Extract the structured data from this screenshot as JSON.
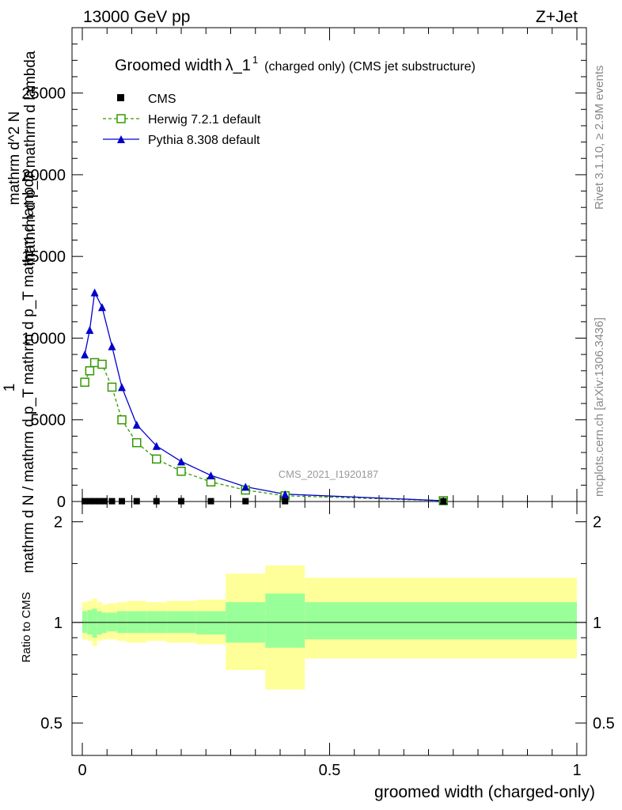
{
  "header": {
    "left": "13000 GeV pp",
    "right": "Z+Jet",
    "watermark": "CMS_2021_I1920187",
    "side_top": "Rivet 3.1.10, ≥ 2.9M events",
    "side_bottom": "mcplots.cern.ch [arXiv:1306.3436]"
  },
  "colors": {
    "cms": "#000000",
    "herwig": "#339900",
    "pythia": "#0000cc",
    "band_outer": "#ffff99",
    "band_inner": "#99ff99"
  },
  "chart_data": [
    {
      "type": "line",
      "title": "Groomed width",
      "title_symbol": "λ_1",
      "title_superscript": "1",
      "title_suffix": "(charged only) (CMS jet substructure)",
      "ylabel_num": "1",
      "ylabel_den": "mathrm d N / mathrm d p_T mathrm d p_T mathrm d lambda",
      "ylabel_num2": "mathrm d^2 N",
      "ylabel_den2": "mathrm d p_T mathrm d lambda",
      "xlim": [
        0,
        1
      ],
      "ylim": [
        0,
        29000
      ],
      "yticks": [
        0,
        5000,
        10000,
        15000,
        20000,
        25000
      ],
      "ytick_labels": [
        "0",
        "5000",
        "10000",
        "15000",
        "20000",
        "25000"
      ],
      "legend": [
        "CMS",
        "Herwig 7.2.1 default",
        "Pythia 8.308 default"
      ],
      "legend_position": "top-left",
      "series": [
        {
          "name": "CMS",
          "x": [
            0.005,
            0.015,
            0.025,
            0.035,
            0.045,
            0.06,
            0.08,
            0.11,
            0.15,
            0.2,
            0.26,
            0.33,
            0.41,
            0.73
          ],
          "values": [
            20,
            20,
            20,
            20,
            20,
            20,
            20,
            20,
            20,
            20,
            20,
            20,
            20,
            20
          ]
        },
        {
          "name": "Herwig 7.2.1 default",
          "x": [
            0.005,
            0.015,
            0.025,
            0.04,
            0.06,
            0.08,
            0.11,
            0.15,
            0.2,
            0.26,
            0.33,
            0.41,
            0.73
          ],
          "values": [
            7300,
            8000,
            8500,
            8400,
            7000,
            5000,
            3600,
            2600,
            1850,
            1200,
            700,
            350,
            50
          ]
        },
        {
          "name": "Pythia 8.308 default",
          "x": [
            0.005,
            0.015,
            0.025,
            0.04,
            0.06,
            0.08,
            0.11,
            0.15,
            0.2,
            0.26,
            0.33,
            0.41,
            0.73
          ],
          "values": [
            9000,
            10500,
            12800,
            11900,
            9500,
            7000,
            4700,
            3400,
            2450,
            1600,
            900,
            450,
            50
          ]
        }
      ]
    },
    {
      "type": "area",
      "ylabel": "Ratio to CMS",
      "xlabel": "groomed width (charged-only)",
      "xlim": [
        0,
        1
      ],
      "ylim": [
        0.4,
        2.3
      ],
      "scale": "log",
      "xticks": [
        0,
        0.5,
        1
      ],
      "xtick_labels": [
        "0",
        "0.5",
        "1"
      ],
      "yticks": [
        0.5,
        1,
        2
      ],
      "ytick_labels": [
        "0.5",
        "1",
        "2"
      ],
      "reference": 1,
      "bins": [
        {
          "x0": 0.0,
          "x1": 0.01,
          "in_lo": 0.93,
          "in_hi": 1.08,
          "out_lo": 0.89,
          "out_hi": 1.15
        },
        {
          "x0": 0.01,
          "x1": 0.02,
          "in_lo": 0.92,
          "in_hi": 1.09,
          "out_lo": 0.88,
          "out_hi": 1.16
        },
        {
          "x0": 0.02,
          "x1": 0.03,
          "in_lo": 0.9,
          "in_hi": 1.1,
          "out_lo": 0.85,
          "out_hi": 1.18
        },
        {
          "x0": 0.03,
          "x1": 0.04,
          "in_lo": 0.92,
          "in_hi": 1.08,
          "out_lo": 0.88,
          "out_hi": 1.15
        },
        {
          "x0": 0.04,
          "x1": 0.05,
          "in_lo": 0.93,
          "in_hi": 1.07,
          "out_lo": 0.89,
          "out_hi": 1.13
        },
        {
          "x0": 0.05,
          "x1": 0.07,
          "in_lo": 0.94,
          "in_hi": 1.07,
          "out_lo": 0.89,
          "out_hi": 1.14
        },
        {
          "x0": 0.07,
          "x1": 0.09,
          "in_lo": 0.93,
          "in_hi": 1.08,
          "out_lo": 0.88,
          "out_hi": 1.15
        },
        {
          "x0": 0.09,
          "x1": 0.13,
          "in_lo": 0.93,
          "in_hi": 1.08,
          "out_lo": 0.87,
          "out_hi": 1.16
        },
        {
          "x0": 0.13,
          "x1": 0.17,
          "in_lo": 0.93,
          "in_hi": 1.08,
          "out_lo": 0.88,
          "out_hi": 1.15
        },
        {
          "x0": 0.17,
          "x1": 0.23,
          "in_lo": 0.93,
          "in_hi": 1.08,
          "out_lo": 0.87,
          "out_hi": 1.16
        },
        {
          "x0": 0.23,
          "x1": 0.29,
          "in_lo": 0.92,
          "in_hi": 1.08,
          "out_lo": 0.86,
          "out_hi": 1.17
        },
        {
          "x0": 0.29,
          "x1": 0.37,
          "in_lo": 0.87,
          "in_hi": 1.15,
          "out_lo": 0.72,
          "out_hi": 1.4
        },
        {
          "x0": 0.37,
          "x1": 0.45,
          "in_lo": 0.84,
          "in_hi": 1.22,
          "out_lo": 0.63,
          "out_hi": 1.48
        },
        {
          "x0": 0.45,
          "x1": 1.0,
          "in_lo": 0.89,
          "in_hi": 1.15,
          "out_lo": 0.78,
          "out_hi": 1.36
        }
      ]
    }
  ]
}
